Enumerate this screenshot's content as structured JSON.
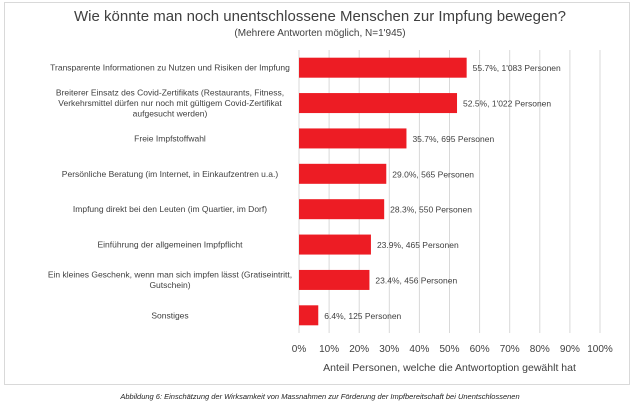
{
  "chart_data": {
    "type": "bar",
    "orientation": "horizontal",
    "title": "Wie könnte man noch unentschlossene Menschen zur Impfung bewegen?",
    "subtitle": "(Mehrere Antworten möglich, N=1'945)",
    "xlabel": "Anteil Personen, welche die Antwortoption gewählt hat",
    "ylabel": "",
    "xlim": [
      0,
      100
    ],
    "x_ticks": [
      "0%",
      "10%",
      "20%",
      "30%",
      "40%",
      "50%",
      "60%",
      "70%",
      "80%",
      "90%",
      "100%"
    ],
    "bar_color": "#ed1c24",
    "grid": true,
    "categories": [
      [
        "Transparente Informationen zu Nutzen und Risiken der Impfung"
      ],
      [
        "Breiterer Einsatz des Covid-Zertifikats (Restaurants, Fitness,",
        "Verkehrsmittel dürfen nur noch mit gültigem Covid-Zertifikat",
        "aufgesucht werden)"
      ],
      [
        "Freie Impfstoffwahl"
      ],
      [
        "Persönliche Beratung (im Internet, in Einkaufzentren u.a.)"
      ],
      [
        "Impfung direkt bei den Leuten (im Quartier, im Dorf)"
      ],
      [
        "Einführung der allgemeinen Impfpflicht"
      ],
      [
        "Ein kleines Geschenk, wenn man sich impfen lässt (Gratiseintritt,",
        "Gutschein)"
      ],
      [
        "Sonstiges"
      ]
    ],
    "values": [
      55.7,
      52.5,
      35.7,
      29.0,
      28.3,
      23.9,
      23.4,
      6.4
    ],
    "data_labels": [
      "55.7%, 1'083 Personen",
      "52.5%, 1'022 Personen",
      "35.7%, 695 Personen",
      "29.0%, 565 Personen",
      "28.3%, 550 Personen",
      "23.9%, 465 Personen",
      "23.4%, 456 Personen",
      "6.4%, 125 Personen"
    ]
  },
  "caption": "Abbildung 6: Einschätzung der Wirksamkeit von Massnahmen zur Förderung der Impfbereitschaft bei Unentschlossenen"
}
